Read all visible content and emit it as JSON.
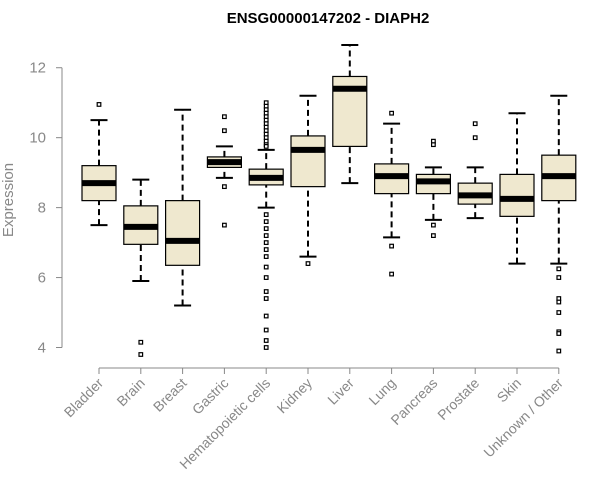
{
  "chart_data": {
    "type": "boxplot",
    "title": "ENSG00000147202 - DIAPH2",
    "xlabel": "",
    "ylabel": "Expression",
    "ylim": [
      3.7,
      12.85
    ],
    "yticks": [
      4,
      6,
      8,
      10,
      12
    ],
    "grid": false,
    "colors": {
      "box_fill": "#efe8cf",
      "box_stroke": "#000000",
      "axis": "#888888"
    },
    "categories": [
      "Bladder",
      "Brain",
      "Breast",
      "Gastric",
      "Hematopoietic cells",
      "Kidney",
      "Liver",
      "Lung",
      "Pancreas",
      "Prostate",
      "Skin",
      "Unknown / Other"
    ],
    "boxes": [
      {
        "min": 7.5,
        "q1": 8.2,
        "median": 8.7,
        "q3": 9.2,
        "max": 10.5,
        "outliers": [
          10.95
        ]
      },
      {
        "min": 5.9,
        "q1": 6.95,
        "median": 7.45,
        "q3": 8.05,
        "max": 8.8,
        "outliers": [
          4.15,
          3.8
        ]
      },
      {
        "min": 5.2,
        "q1": 6.35,
        "median": 7.05,
        "q3": 8.2,
        "max": 10.8,
        "outliers": []
      },
      {
        "min": 8.85,
        "q1": 9.15,
        "median": 9.3,
        "q3": 9.45,
        "max": 9.75,
        "outliers": [
          10.6,
          10.2,
          8.6,
          7.5
        ]
      },
      {
        "min": 8.0,
        "q1": 8.65,
        "median": 8.85,
        "q3": 9.1,
        "max": 9.65,
        "outliers": [
          11.0,
          10.9,
          10.8,
          10.7,
          10.6,
          10.5,
          10.4,
          10.3,
          10.2,
          10.1,
          10.0,
          9.9,
          9.8,
          9.75,
          7.8,
          7.6,
          7.4,
          7.2,
          7.0,
          6.8,
          6.6,
          6.3,
          6.0,
          5.6,
          5.4,
          4.9,
          4.5,
          4.2,
          4.0
        ]
      },
      {
        "min": 6.6,
        "q1": 8.6,
        "median": 9.65,
        "q3": 10.05,
        "max": 11.2,
        "outliers": [
          6.4
        ]
      },
      {
        "min": 8.7,
        "q1": 9.75,
        "median": 11.4,
        "q3": 11.75,
        "max": 12.65,
        "outliers": []
      },
      {
        "min": 7.15,
        "q1": 8.4,
        "median": 8.9,
        "q3": 9.25,
        "max": 10.4,
        "outliers": [
          10.7,
          6.9,
          6.1
        ]
      },
      {
        "min": 7.65,
        "q1": 8.4,
        "median": 8.75,
        "q3": 8.95,
        "max": 9.15,
        "outliers": [
          9.9,
          9.8,
          7.5,
          7.2
        ]
      },
      {
        "min": 7.7,
        "q1": 8.1,
        "median": 8.35,
        "q3": 8.7,
        "max": 9.15,
        "outliers": [
          10.4,
          10.0
        ]
      },
      {
        "min": 6.4,
        "q1": 7.75,
        "median": 8.25,
        "q3": 8.95,
        "max": 10.7,
        "outliers": []
      },
      {
        "min": 6.4,
        "q1": 8.2,
        "median": 8.9,
        "q3": 9.5,
        "max": 11.2,
        "outliers": [
          6.25,
          6.0,
          5.4,
          5.3,
          5.0,
          4.45,
          4.4,
          3.9
        ]
      }
    ]
  }
}
